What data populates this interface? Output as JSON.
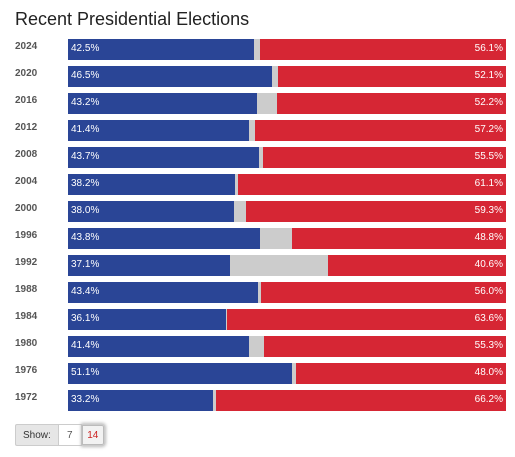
{
  "title": "Recent Presidential Elections",
  "colors": {
    "dem": "#2a4596",
    "rep": "#d62634",
    "other": "#cccccc"
  },
  "elections": [
    {
      "year": "2024",
      "dem": 42.5,
      "rep": 56.1,
      "dem_label": "42.5%",
      "rep_label": "56.1%"
    },
    {
      "year": "2020",
      "dem": 46.5,
      "rep": 52.1,
      "dem_label": "46.5%",
      "rep_label": "52.1%"
    },
    {
      "year": "2016",
      "dem": 43.2,
      "rep": 52.2,
      "dem_label": "43.2%",
      "rep_label": "52.2%"
    },
    {
      "year": "2012",
      "dem": 41.4,
      "rep": 57.2,
      "dem_label": "41.4%",
      "rep_label": "57.2%"
    },
    {
      "year": "2008",
      "dem": 43.7,
      "rep": 55.5,
      "dem_label": "43.7%",
      "rep_label": "55.5%"
    },
    {
      "year": "2004",
      "dem": 38.2,
      "rep": 61.1,
      "dem_label": "38.2%",
      "rep_label": "61.1%"
    },
    {
      "year": "2000",
      "dem": 38.0,
      "rep": 59.3,
      "dem_label": "38.0%",
      "rep_label": "59.3%"
    },
    {
      "year": "1996",
      "dem": 43.8,
      "rep": 48.8,
      "dem_label": "43.8%",
      "rep_label": "48.8%"
    },
    {
      "year": "1992",
      "dem": 37.1,
      "rep": 40.6,
      "dem_label": "37.1%",
      "rep_label": "40.6%"
    },
    {
      "year": "1988",
      "dem": 43.4,
      "rep": 56.0,
      "dem_label": "43.4%",
      "rep_label": "56.0%"
    },
    {
      "year": "1984",
      "dem": 36.1,
      "rep": 63.6,
      "dem_label": "36.1%",
      "rep_label": "63.6%"
    },
    {
      "year": "1980",
      "dem": 41.4,
      "rep": 55.3,
      "dem_label": "41.4%",
      "rep_label": "55.3%"
    },
    {
      "year": "1976",
      "dem": 51.1,
      "rep": 48.0,
      "dem_label": "51.1%",
      "rep_label": "48.0%"
    },
    {
      "year": "1972",
      "dem": 33.2,
      "rep": 66.2,
      "dem_label": "33.2%",
      "rep_label": "66.2%"
    }
  ],
  "show": {
    "label": "Show:",
    "options": [
      "7",
      "14"
    ],
    "selected": "14"
  }
}
